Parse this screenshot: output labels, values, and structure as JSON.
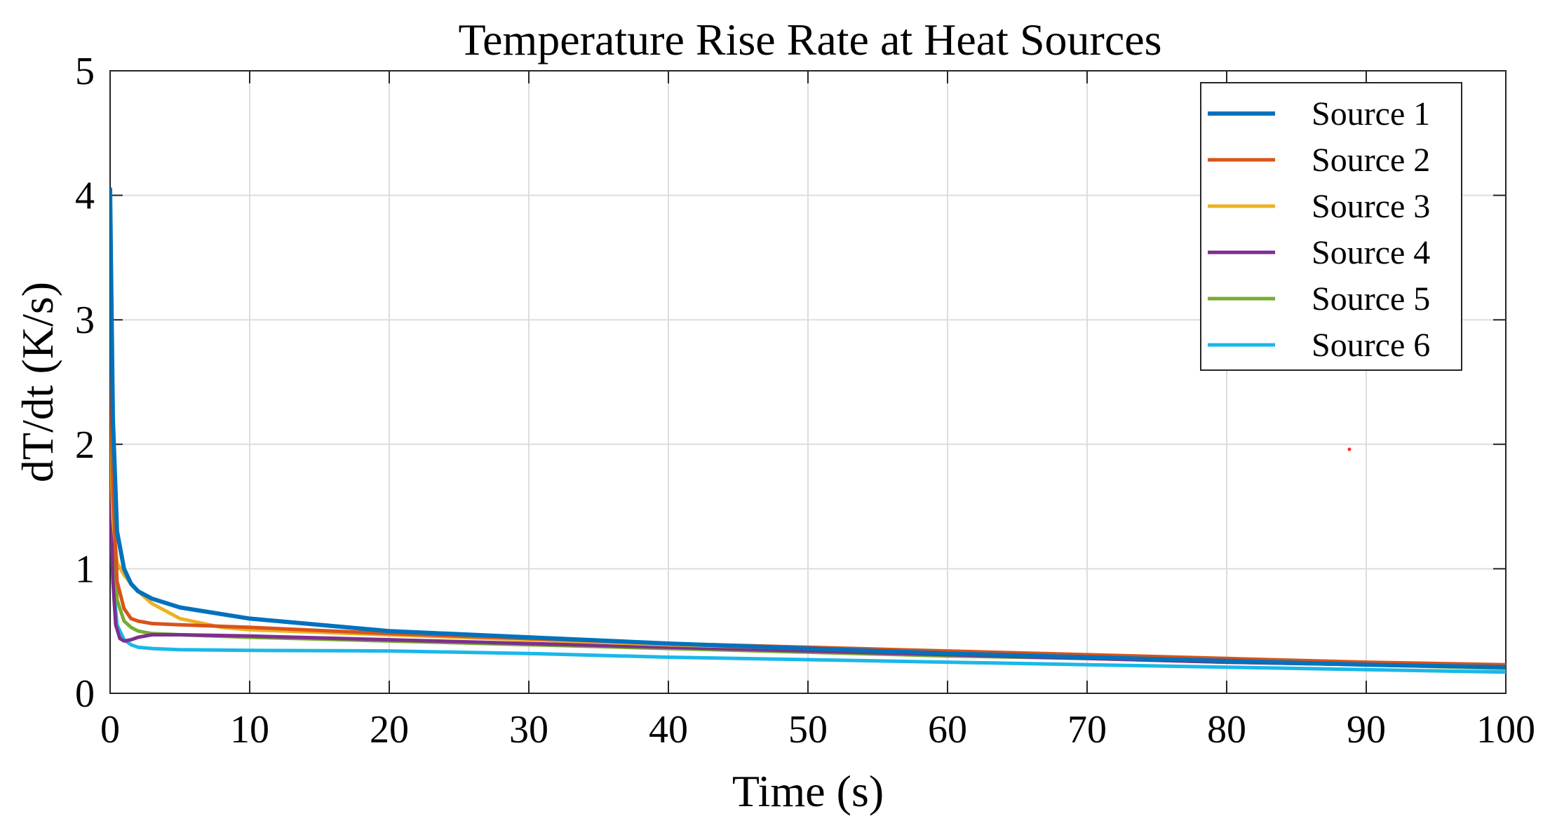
{
  "chart_data": {
    "type": "line",
    "title": "Temperature Rise Rate at Heat Sources",
    "xlabel": "Time (s)",
    "ylabel": "dT/dt (K/s)",
    "xlim": [
      0,
      100
    ],
    "ylim": [
      0,
      5
    ],
    "xticks": [
      0,
      10,
      20,
      30,
      40,
      50,
      60,
      70,
      80,
      90,
      100
    ],
    "yticks": [
      0,
      1,
      2,
      3,
      4,
      5
    ],
    "grid": true,
    "legend_position": "top-right",
    "series": [
      {
        "name": "Source 1",
        "color": "#0072BD",
        "x": [
          0,
          0.2,
          0.5,
          1,
          1.5,
          2,
          3,
          5,
          10,
          20,
          30,
          40,
          50,
          60,
          70,
          80,
          90,
          100
        ],
        "y": [
          4.05,
          2.2,
          1.3,
          1.0,
          0.88,
          0.82,
          0.76,
          0.69,
          0.6,
          0.5,
          0.45,
          0.4,
          0.36,
          0.32,
          0.29,
          0.26,
          0.23,
          0.21
        ]
      },
      {
        "name": "Source 2",
        "color": "#D95319",
        "x": [
          0,
          0.2,
          0.5,
          1,
          1.5,
          2,
          3,
          5,
          10,
          20,
          30,
          40,
          50,
          60,
          70,
          80,
          90,
          100
        ],
        "y": [
          3.2,
          1.6,
          0.9,
          0.68,
          0.6,
          0.58,
          0.56,
          0.55,
          0.53,
          0.48,
          0.44,
          0.4,
          0.37,
          0.34,
          0.31,
          0.28,
          0.25,
          0.23
        ]
      },
      {
        "name": "Source 3",
        "color": "#EDB120",
        "x": [
          0,
          0.2,
          0.5,
          1,
          1.5,
          2,
          3,
          5,
          8,
          10,
          20,
          30,
          40,
          50,
          60,
          70,
          80,
          90,
          100
        ],
        "y": [
          2.1,
          1.4,
          1.05,
          0.95,
          0.88,
          0.82,
          0.72,
          0.6,
          0.53,
          0.51,
          0.47,
          0.43,
          0.39,
          0.36,
          0.33,
          0.3,
          0.27,
          0.24,
          0.22
        ]
      },
      {
        "name": "Source 4",
        "color": "#7E2F8E",
        "x": [
          0,
          0.2,
          0.4,
          0.7,
          1,
          1.5,
          2,
          3,
          5,
          10,
          20,
          30,
          40,
          50,
          60,
          70,
          80,
          90,
          100
        ],
        "y": [
          1.7,
          0.9,
          0.55,
          0.44,
          0.42,
          0.43,
          0.45,
          0.47,
          0.47,
          0.46,
          0.43,
          0.4,
          0.37,
          0.34,
          0.31,
          0.28,
          0.25,
          0.23,
          0.21
        ]
      },
      {
        "name": "Source 5",
        "color": "#77AC30",
        "x": [
          0,
          0.2,
          0.5,
          1,
          1.5,
          2,
          3,
          5,
          10,
          20,
          30,
          40,
          50,
          60,
          70,
          80,
          90,
          100
        ],
        "y": [
          2.85,
          1.3,
          0.75,
          0.58,
          0.53,
          0.5,
          0.48,
          0.47,
          0.45,
          0.42,
          0.39,
          0.36,
          0.33,
          0.3,
          0.28,
          0.25,
          0.23,
          0.2
        ]
      },
      {
        "name": "Source 6",
        "color": "#1AB8E8",
        "x": [
          0,
          0.2,
          0.5,
          1,
          1.5,
          2,
          3,
          5,
          10,
          20,
          30,
          40,
          50,
          60,
          70,
          80,
          90,
          100
        ],
        "y": [
          1.65,
          0.9,
          0.55,
          0.43,
          0.39,
          0.37,
          0.36,
          0.35,
          0.345,
          0.34,
          0.32,
          0.29,
          0.27,
          0.25,
          0.23,
          0.21,
          0.19,
          0.17
        ]
      }
    ]
  }
}
